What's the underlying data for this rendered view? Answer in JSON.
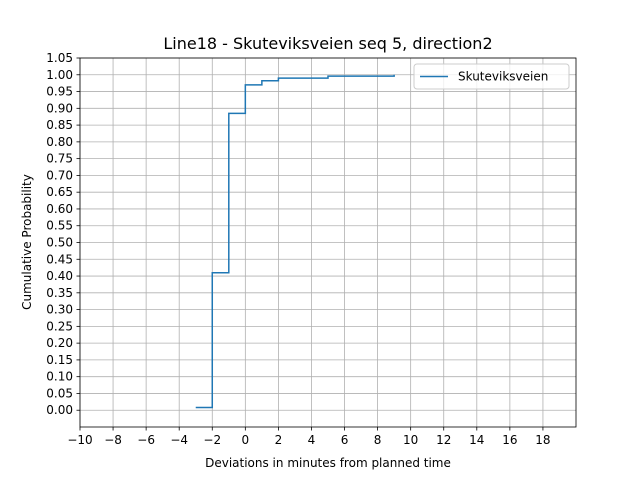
{
  "chart_data": {
    "type": "line",
    "title": "Line18 - Skuteviksveien seq 5, direction2",
    "xlabel": "Deviations in minutes from planned time",
    "ylabel": "Cumulative Probability",
    "xlim": [
      -10,
      20
    ],
    "ylim": [
      -0.05,
      1.05
    ],
    "xticks": [
      -10,
      -8,
      -6,
      -4,
      -2,
      0,
      2,
      4,
      6,
      8,
      10,
      12,
      14,
      16,
      18
    ],
    "xtick_labels": [
      "−10",
      "−8",
      "−6",
      "−4",
      "−2",
      "0",
      "2",
      "4",
      "6",
      "8",
      "10",
      "12",
      "14",
      "16",
      "18"
    ],
    "yticks": [
      0.0,
      0.05,
      0.1,
      0.15,
      0.2,
      0.25,
      0.3,
      0.35,
      0.4,
      0.45,
      0.5,
      0.55,
      0.6,
      0.65,
      0.7,
      0.75,
      0.8,
      0.85,
      0.9,
      0.95,
      1.0,
      1.05
    ],
    "ytick_labels": [
      "0.00",
      "0.05",
      "0.10",
      "0.15",
      "0.20",
      "0.25",
      "0.30",
      "0.35",
      "0.40",
      "0.45",
      "0.50",
      "0.55",
      "0.60",
      "0.65",
      "0.70",
      "0.75",
      "0.80",
      "0.85",
      "0.90",
      "0.95",
      "1.00",
      "1.05"
    ],
    "grid": true,
    "legend_position": "top-right",
    "step": "post",
    "series": [
      {
        "name": "Skuteviksveien",
        "color": "#1f77b4",
        "x": [
          -3,
          -2,
          -1,
          0,
          1,
          2,
          3,
          4,
          5,
          6,
          7,
          8,
          9
        ],
        "y": [
          0.008,
          0.41,
          0.885,
          0.97,
          0.982,
          0.99,
          0.99,
          0.99,
          0.996,
          0.996,
          0.996,
          0.996,
          1.0
        ]
      }
    ]
  }
}
